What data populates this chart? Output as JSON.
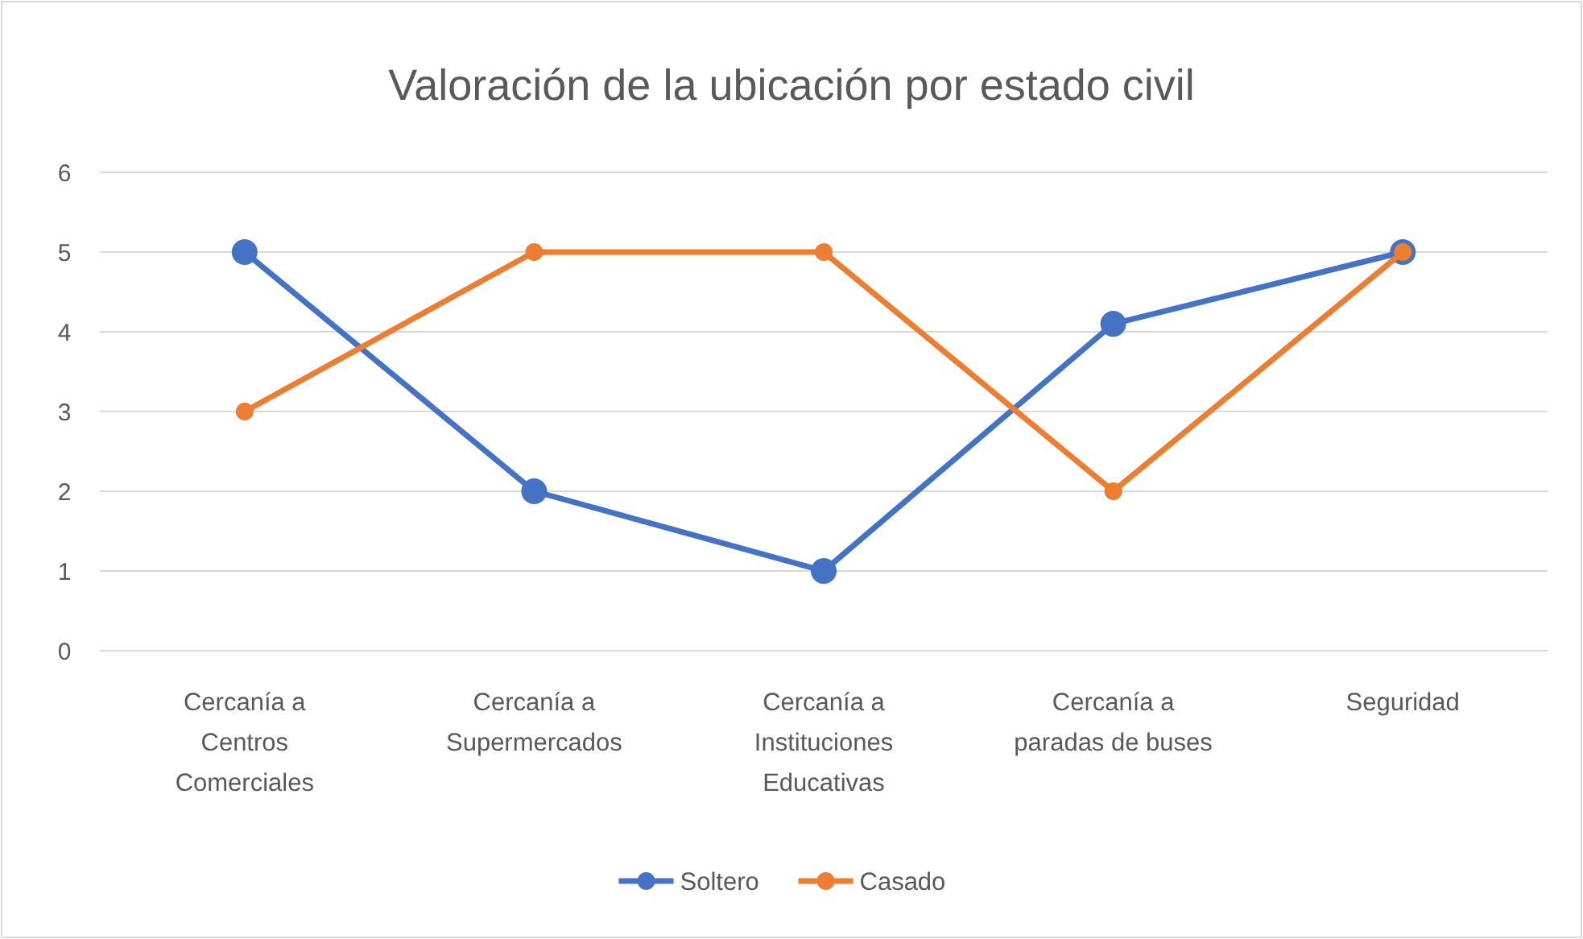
{
  "chart_data": {
    "type": "line",
    "title": "Valoración de la ubicación por estado civil",
    "categories": [
      "Cercanía a Centros Comerciales",
      "Cercanía a Supermercados",
      "Cercanía a Instituciones Educativas",
      "Cercanía a paradas de buses",
      "Seguridad"
    ],
    "series": [
      {
        "name": "Soltero",
        "color": "#4472c4",
        "values": [
          5,
          2,
          1,
          4.1,
          5
        ]
      },
      {
        "name": "Casado",
        "color": "#ed7d31",
        "values": [
          3,
          5,
          5,
          2,
          5
        ]
      }
    ],
    "ylim": [
      0,
      6
    ],
    "yticks": [
      0,
      1,
      2,
      3,
      4,
      5,
      6
    ],
    "grid": "y",
    "legend": "bottom",
    "marker": "circle",
    "line_style": "solid"
  }
}
